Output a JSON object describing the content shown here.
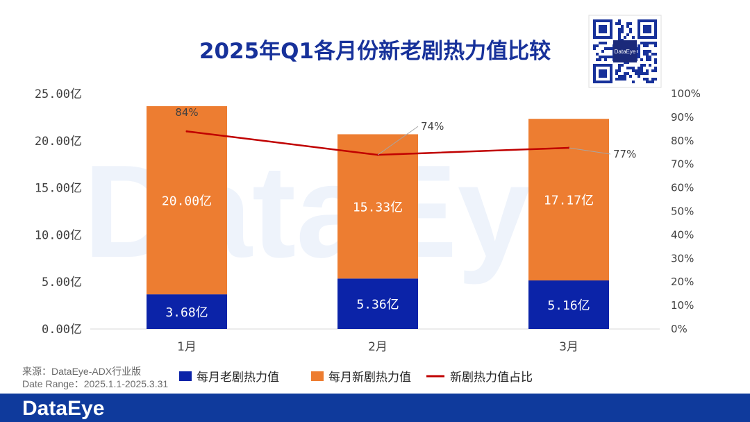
{
  "colors": {
    "old": "#0b23a8",
    "new": "#ed7d31",
    "line": "#c00000",
    "title": "#17319a",
    "footer": "#0f3a9c"
  },
  "brand": {
    "watermark": "DataEye",
    "footer_logo": "DataEye",
    "qr_logo": "DataEye"
  },
  "source": {
    "line1": "来源：DataEye-ADX行业版",
    "line2": "Date Range：2025.1.1-2025.3.31"
  },
  "chart_data": {
    "type": "bar",
    "stacked": true,
    "title": "2025年Q1各月份新老剧热力值比较",
    "categories": [
      "1月",
      "2月",
      "3月"
    ],
    "series": [
      {
        "name": "每月老剧热力值",
        "values": [
          3.68,
          5.36,
          5.16
        ],
        "labels": [
          "3.68亿",
          "5.36亿",
          "5.16亿"
        ]
      },
      {
        "name": "每月新剧热力值",
        "values": [
          20.0,
          15.33,
          17.17
        ],
        "labels": [
          "20.00亿",
          "15.33亿",
          "17.17亿"
        ]
      },
      {
        "name": "新剧热力值占比",
        "type": "line",
        "axis": "right",
        "values": [
          84,
          74,
          77
        ],
        "labels": [
          "84%",
          "74%",
          "77%"
        ]
      }
    ],
    "y_left": {
      "ylim": [
        0,
        25
      ],
      "ticks": [
        0,
        5,
        10,
        15,
        20,
        25
      ],
      "tick_labels": [
        "0.00亿",
        "5.00亿",
        "10.00亿",
        "15.00亿",
        "20.00亿",
        "25.00亿"
      ]
    },
    "y_right": {
      "ylim": [
        0,
        100
      ],
      "ticks": [
        0,
        10,
        20,
        30,
        40,
        50,
        60,
        70,
        80,
        90,
        100
      ],
      "tick_labels": [
        "0%",
        "10%",
        "20%",
        "30%",
        "40%",
        "50%",
        "60%",
        "70%",
        "80%",
        "90%",
        "100%"
      ]
    },
    "legend": "bottom"
  }
}
